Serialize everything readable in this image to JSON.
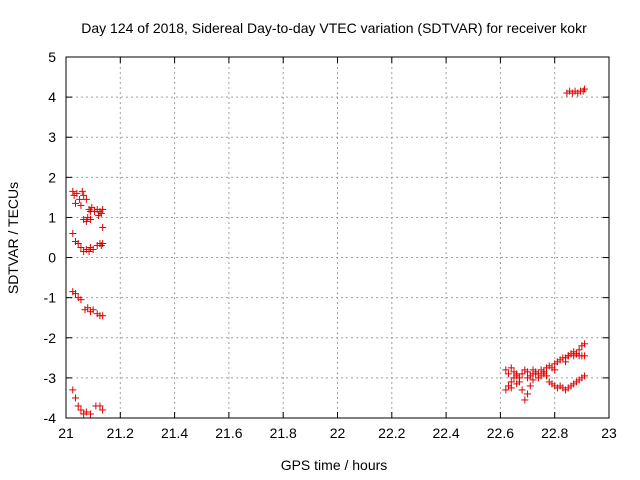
{
  "chart_data": {
    "type": "scatter",
    "title": "Day 124 of 2018, Sidereal Day-to-day VTEC variation (SDTVAR) for receiver kokr",
    "xlabel": "GPS time / hours",
    "ylabel": "SDTVAR / TECUs",
    "xlim": [
      21,
      23
    ],
    "ylim": [
      -4,
      5
    ],
    "xticks": [
      "21",
      "21.2",
      "21.4",
      "21.6",
      "21.8",
      "22",
      "22.2",
      "22.4",
      "22.6",
      "22.8",
      "23"
    ],
    "yticks": [
      "-4",
      "-3",
      "-2",
      "-1",
      "0",
      "1",
      "2",
      "3",
      "4",
      "5"
    ],
    "grid": true,
    "marker": "+",
    "color": "#dd0000",
    "series": [
      {
        "name": "SDTVAR",
        "points": [
          [
            21.025,
            1.65
          ],
          [
            21.03,
            1.55
          ],
          [
            21.035,
            1.35
          ],
          [
            21.04,
            1.6
          ],
          [
            21.05,
            1.45
          ],
          [
            21.055,
            1.3
          ],
          [
            21.06,
            1.65
          ],
          [
            21.065,
            1.55
          ],
          [
            21.075,
            1.45
          ],
          [
            21.085,
            1.2
          ],
          [
            21.09,
            1.15
          ],
          [
            21.095,
            1.25
          ],
          [
            21.105,
            1.15
          ],
          [
            21.115,
            1.2
          ],
          [
            21.12,
            1.05
          ],
          [
            21.125,
            1.15
          ],
          [
            21.13,
            1.1
          ],
          [
            21.135,
            1.2
          ],
          [
            21.065,
            0.95
          ],
          [
            21.075,
            0.9
          ],
          [
            21.08,
            1.0
          ],
          [
            21.09,
            0.95
          ],
          [
            21.135,
            0.75
          ],
          [
            21.025,
            0.6
          ],
          [
            21.035,
            0.4
          ],
          [
            21.045,
            0.35
          ],
          [
            21.055,
            0.25
          ],
          [
            21.065,
            0.15
          ],
          [
            21.075,
            0.2
          ],
          [
            21.085,
            0.15
          ],
          [
            21.09,
            0.25
          ],
          [
            21.1,
            0.2
          ],
          [
            21.115,
            0.3
          ],
          [
            21.125,
            0.35
          ],
          [
            21.13,
            0.3
          ],
          [
            21.135,
            0.35
          ],
          [
            21.025,
            -0.85
          ],
          [
            21.035,
            -0.9
          ],
          [
            21.045,
            -1.0
          ],
          [
            21.055,
            -1.05
          ],
          [
            21.07,
            -1.3
          ],
          [
            21.08,
            -1.25
          ],
          [
            21.09,
            -1.35
          ],
          [
            21.1,
            -1.3
          ],
          [
            21.115,
            -1.4
          ],
          [
            21.125,
            -1.45
          ],
          [
            21.135,
            -1.45
          ],
          [
            21.025,
            -3.3
          ],
          [
            21.035,
            -3.5
          ],
          [
            21.045,
            -3.7
          ],
          [
            21.055,
            -3.8
          ],
          [
            21.065,
            -3.9
          ],
          [
            21.075,
            -3.85
          ],
          [
            21.09,
            -3.9
          ],
          [
            21.11,
            -3.7
          ],
          [
            21.125,
            -3.7
          ],
          [
            21.135,
            -3.8
          ],
          [
            22.845,
            4.1
          ],
          [
            22.855,
            4.15
          ],
          [
            22.865,
            4.1
          ],
          [
            22.875,
            4.15
          ],
          [
            22.885,
            4.1
          ],
          [
            22.895,
            4.15
          ],
          [
            22.905,
            4.15
          ],
          [
            22.91,
            4.2
          ],
          [
            22.62,
            -2.8
          ],
          [
            22.63,
            -2.9
          ],
          [
            22.64,
            -2.75
          ],
          [
            22.65,
            -2.85
          ],
          [
            22.66,
            -2.9
          ],
          [
            22.67,
            -3.0
          ],
          [
            22.68,
            -2.9
          ],
          [
            22.69,
            -2.8
          ],
          [
            22.7,
            -2.85
          ],
          [
            22.71,
            -2.95
          ],
          [
            22.72,
            -2.8
          ],
          [
            22.73,
            -2.85
          ],
          [
            22.74,
            -2.9
          ],
          [
            22.75,
            -2.8
          ],
          [
            22.76,
            -2.85
          ],
          [
            22.77,
            -2.75
          ],
          [
            22.78,
            -2.7
          ],
          [
            22.79,
            -2.75
          ],
          [
            22.8,
            -2.65
          ],
          [
            22.81,
            -2.6
          ],
          [
            22.82,
            -2.55
          ],
          [
            22.83,
            -2.5
          ],
          [
            22.84,
            -2.5
          ],
          [
            22.85,
            -2.45
          ],
          [
            22.86,
            -2.4
          ],
          [
            22.87,
            -2.35
          ],
          [
            22.88,
            -2.4
          ],
          [
            22.89,
            -2.3
          ],
          [
            22.9,
            -2.2
          ],
          [
            22.91,
            -2.15
          ],
          [
            22.62,
            -3.3
          ],
          [
            22.63,
            -3.2
          ],
          [
            22.64,
            -3.1
          ],
          [
            22.65,
            -3.0
          ],
          [
            22.66,
            -2.95
          ],
          [
            22.67,
            -3.1
          ],
          [
            22.68,
            -3.3
          ],
          [
            22.69,
            -3.55
          ],
          [
            22.7,
            -3.4
          ],
          [
            22.71,
            -3.2
          ],
          [
            22.72,
            -3.05
          ],
          [
            22.73,
            -2.9
          ],
          [
            22.74,
            -3.0
          ],
          [
            22.75,
            -2.95
          ],
          [
            22.76,
            -2.85
          ],
          [
            22.77,
            -2.95
          ],
          [
            22.78,
            -3.1
          ],
          [
            22.79,
            -3.15
          ],
          [
            22.8,
            -3.2
          ],
          [
            22.81,
            -3.25
          ],
          [
            22.82,
            -3.2
          ],
          [
            22.83,
            -3.25
          ],
          [
            22.84,
            -3.3
          ],
          [
            22.85,
            -3.25
          ],
          [
            22.86,
            -3.2
          ],
          [
            22.87,
            -3.15
          ],
          [
            22.88,
            -3.1
          ],
          [
            22.89,
            -3.05
          ],
          [
            22.9,
            -3.0
          ],
          [
            22.91,
            -2.95
          ],
          [
            22.64,
            -3.25
          ],
          [
            22.66,
            -3.15
          ],
          [
            22.7,
            -3.0
          ],
          [
            22.72,
            -2.9
          ],
          [
            22.76,
            -2.9
          ],
          [
            22.8,
            -2.8
          ],
          [
            22.84,
            -2.6
          ],
          [
            22.85,
            -2.45
          ],
          [
            22.86,
            -2.4
          ],
          [
            22.87,
            -2.45
          ],
          [
            22.88,
            -2.4
          ],
          [
            22.89,
            -2.45
          ],
          [
            22.9,
            -2.45
          ],
          [
            22.91,
            -2.45
          ]
        ]
      }
    ]
  }
}
